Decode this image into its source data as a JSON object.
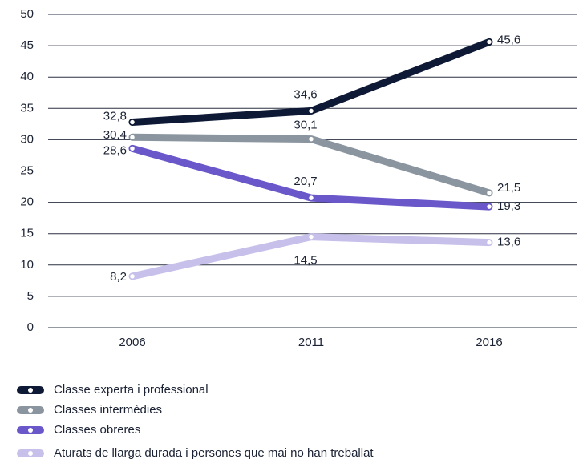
{
  "chart_data": {
    "type": "line",
    "x": [
      "2006",
      "2011",
      "2016"
    ],
    "series": [
      {
        "name": "Classe experta i professional",
        "color": "#0e1a35",
        "values": [
          32.8,
          34.6,
          45.6
        ],
        "value_labels": [
          "32,8",
          "34,6",
          "45,6"
        ]
      },
      {
        "name": "Classes intermèdies",
        "color": "#8a959f",
        "values": [
          30.4,
          30.1,
          21.5
        ],
        "value_labels": [
          "30,4",
          "30,1",
          "21,5"
        ]
      },
      {
        "name": "Classes obreres",
        "color": "#6a57c9",
        "values": [
          28.6,
          20.7,
          19.3
        ],
        "value_labels": [
          "28,6",
          "20,7",
          "19,3"
        ]
      },
      {
        "name": "Aturats de llarga durada i persones que mai no han treballat",
        "color": "#c6c0ea",
        "values": [
          8.2,
          14.5,
          13.6
        ],
        "value_labels": [
          "8,2",
          "14,5",
          "13,6"
        ]
      }
    ],
    "ylim": [
      0,
      50
    ],
    "yticks": [
      0,
      5,
      10,
      15,
      20,
      25,
      30,
      35,
      40,
      45,
      50
    ],
    "grid": true,
    "legend": "bottom"
  }
}
